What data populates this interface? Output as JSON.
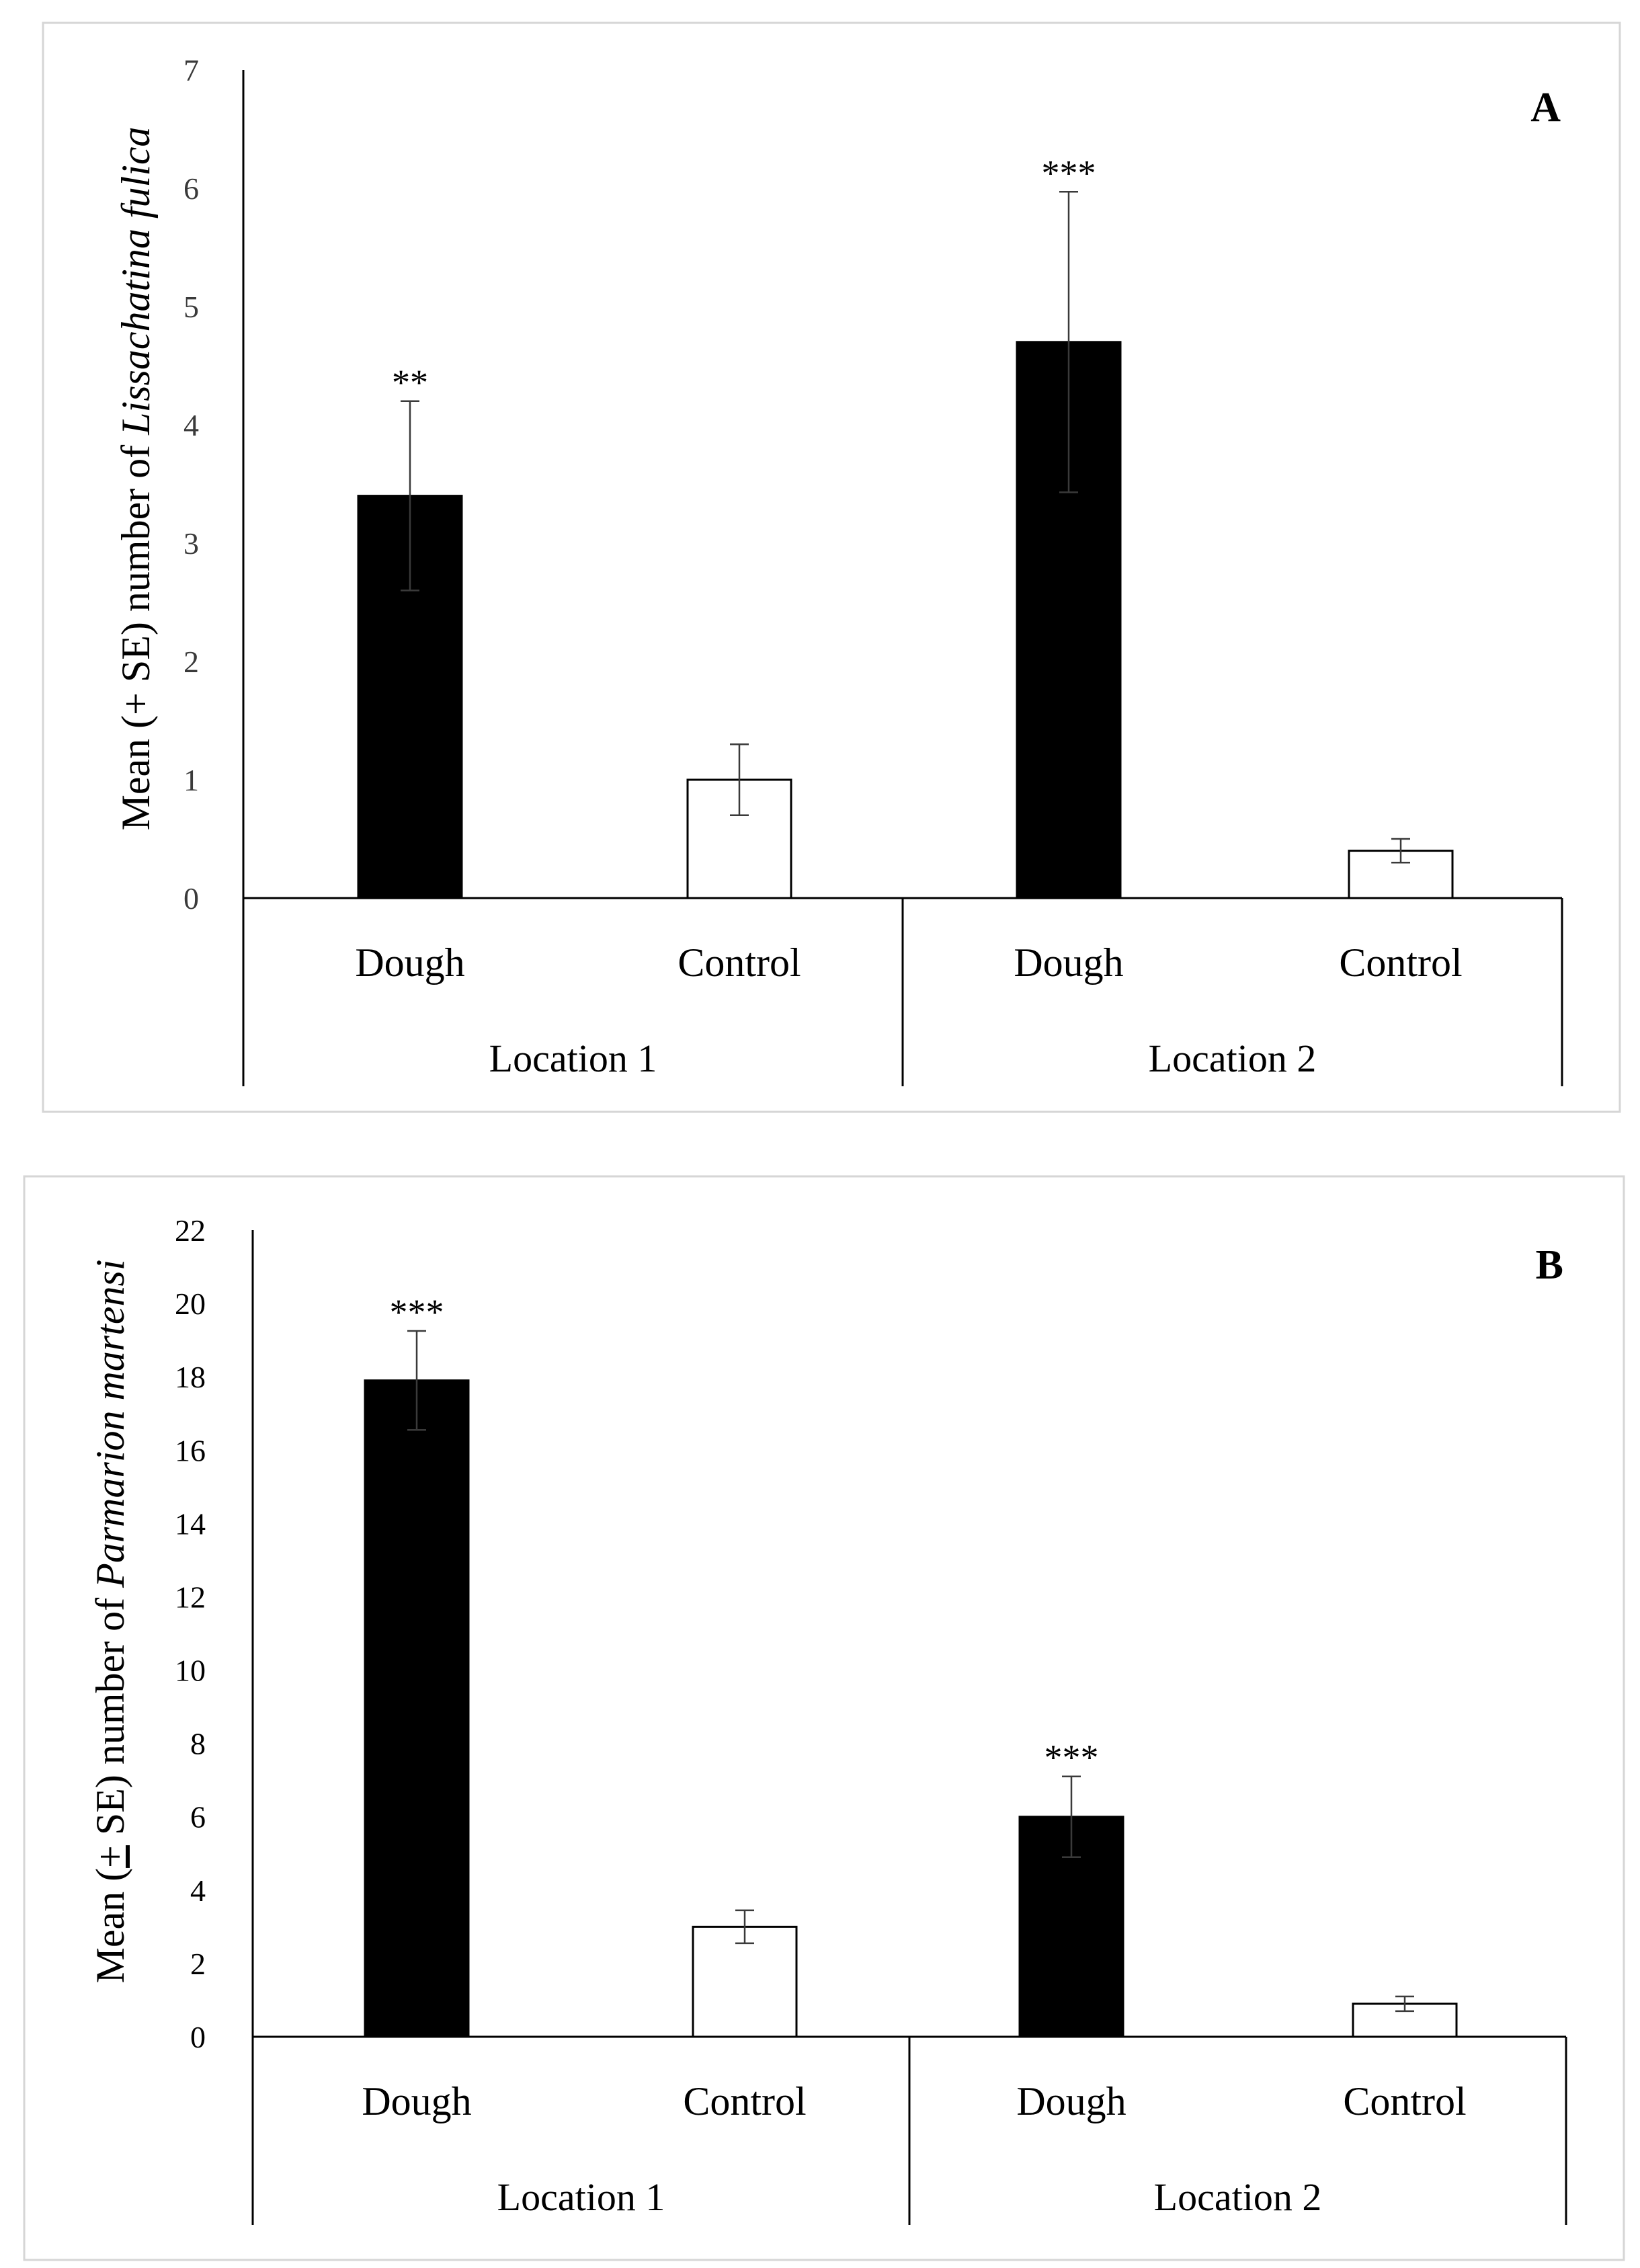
{
  "chart_data": [
    {
      "panel": "A",
      "type": "bar",
      "panel_label": "A",
      "ylabel_prefix": "Mean (+ SE) number of ",
      "ylabel_species": "Lissachatina fulica",
      "ylim": [
        0,
        7
      ],
      "yticks": [
        0,
        1,
        2,
        3,
        4,
        5,
        6,
        7
      ],
      "groups": [
        {
          "name": "Location 1",
          "bars": [
            {
              "label": "Dough",
              "value": 3.4,
              "se": 0.8,
              "sig": "**",
              "fill": "#000000"
            },
            {
              "label": "Control",
              "value": 1.0,
              "se": 0.3,
              "sig": "",
              "fill": "#ffffff"
            }
          ]
        },
        {
          "name": "Location 2",
          "bars": [
            {
              "label": "Dough",
              "value": 4.7,
              "se": 1.27,
              "sig": "***",
              "fill": "#000000"
            },
            {
              "label": "Control",
              "value": 0.4,
              "se": 0.1,
              "sig": "",
              "fill": "#ffffff"
            }
          ]
        }
      ]
    },
    {
      "panel": "B",
      "type": "bar",
      "panel_label": "B",
      "ylabel_prefix": "Mean (",
      "ylabel_pm": "+",
      "ylabel_mid": " SE) number of ",
      "ylabel_species": "Parmarion martensi",
      "ylim": [
        0,
        22
      ],
      "yticks": [
        0,
        2,
        4,
        6,
        8,
        10,
        12,
        14,
        16,
        18,
        20,
        22
      ],
      "groups": [
        {
          "name": "Location 1",
          "bars": [
            {
              "label": "Dough",
              "value": 17.9,
              "se": 1.35,
              "sig": "***",
              "fill": "#000000"
            },
            {
              "label": "Control",
              "value": 3.0,
              "se": 0.45,
              "sig": "",
              "fill": "#ffffff"
            }
          ]
        },
        {
          "name": "Location 2",
          "bars": [
            {
              "label": "Dough",
              "value": 6.0,
              "se": 1.1,
              "sig": "***",
              "fill": "#000000"
            },
            {
              "label": "Control",
              "value": 0.9,
              "se": 0.2,
              "sig": "",
              "fill": "#ffffff"
            }
          ]
        }
      ]
    }
  ]
}
